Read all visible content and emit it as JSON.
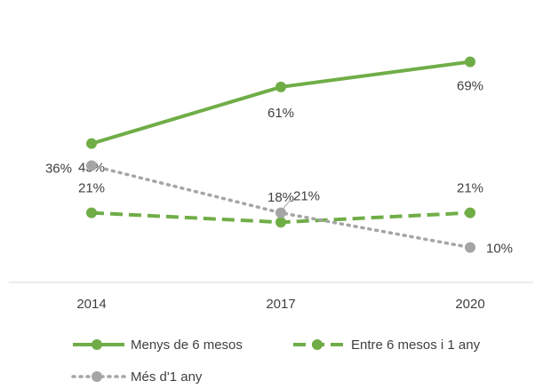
{
  "chart_data": {
    "type": "line",
    "categories": [
      "2014",
      "2017",
      "2020"
    ],
    "ylim": [
      0,
      83
    ],
    "series": [
      {
        "name": "Menys de 6 mesos",
        "color": "#70ad47",
        "style": "solid",
        "values": [
          43,
          61,
          69
        ],
        "value_labels": [
          "43%",
          "61%",
          "69%"
        ]
      },
      {
        "name": "Entre 6 mesos i 1 any",
        "color": "#70ad47",
        "style": "dashed",
        "values": [
          21,
          18,
          21
        ],
        "value_labels": [
          "21%",
          "18%",
          "21%"
        ]
      },
      {
        "name": "Més d'1 any",
        "color": "#a5a5a5",
        "style": "dotted",
        "values": [
          36,
          21,
          10
        ],
        "value_labels": [
          "36%",
          "21%",
          "10%"
        ]
      }
    ]
  }
}
